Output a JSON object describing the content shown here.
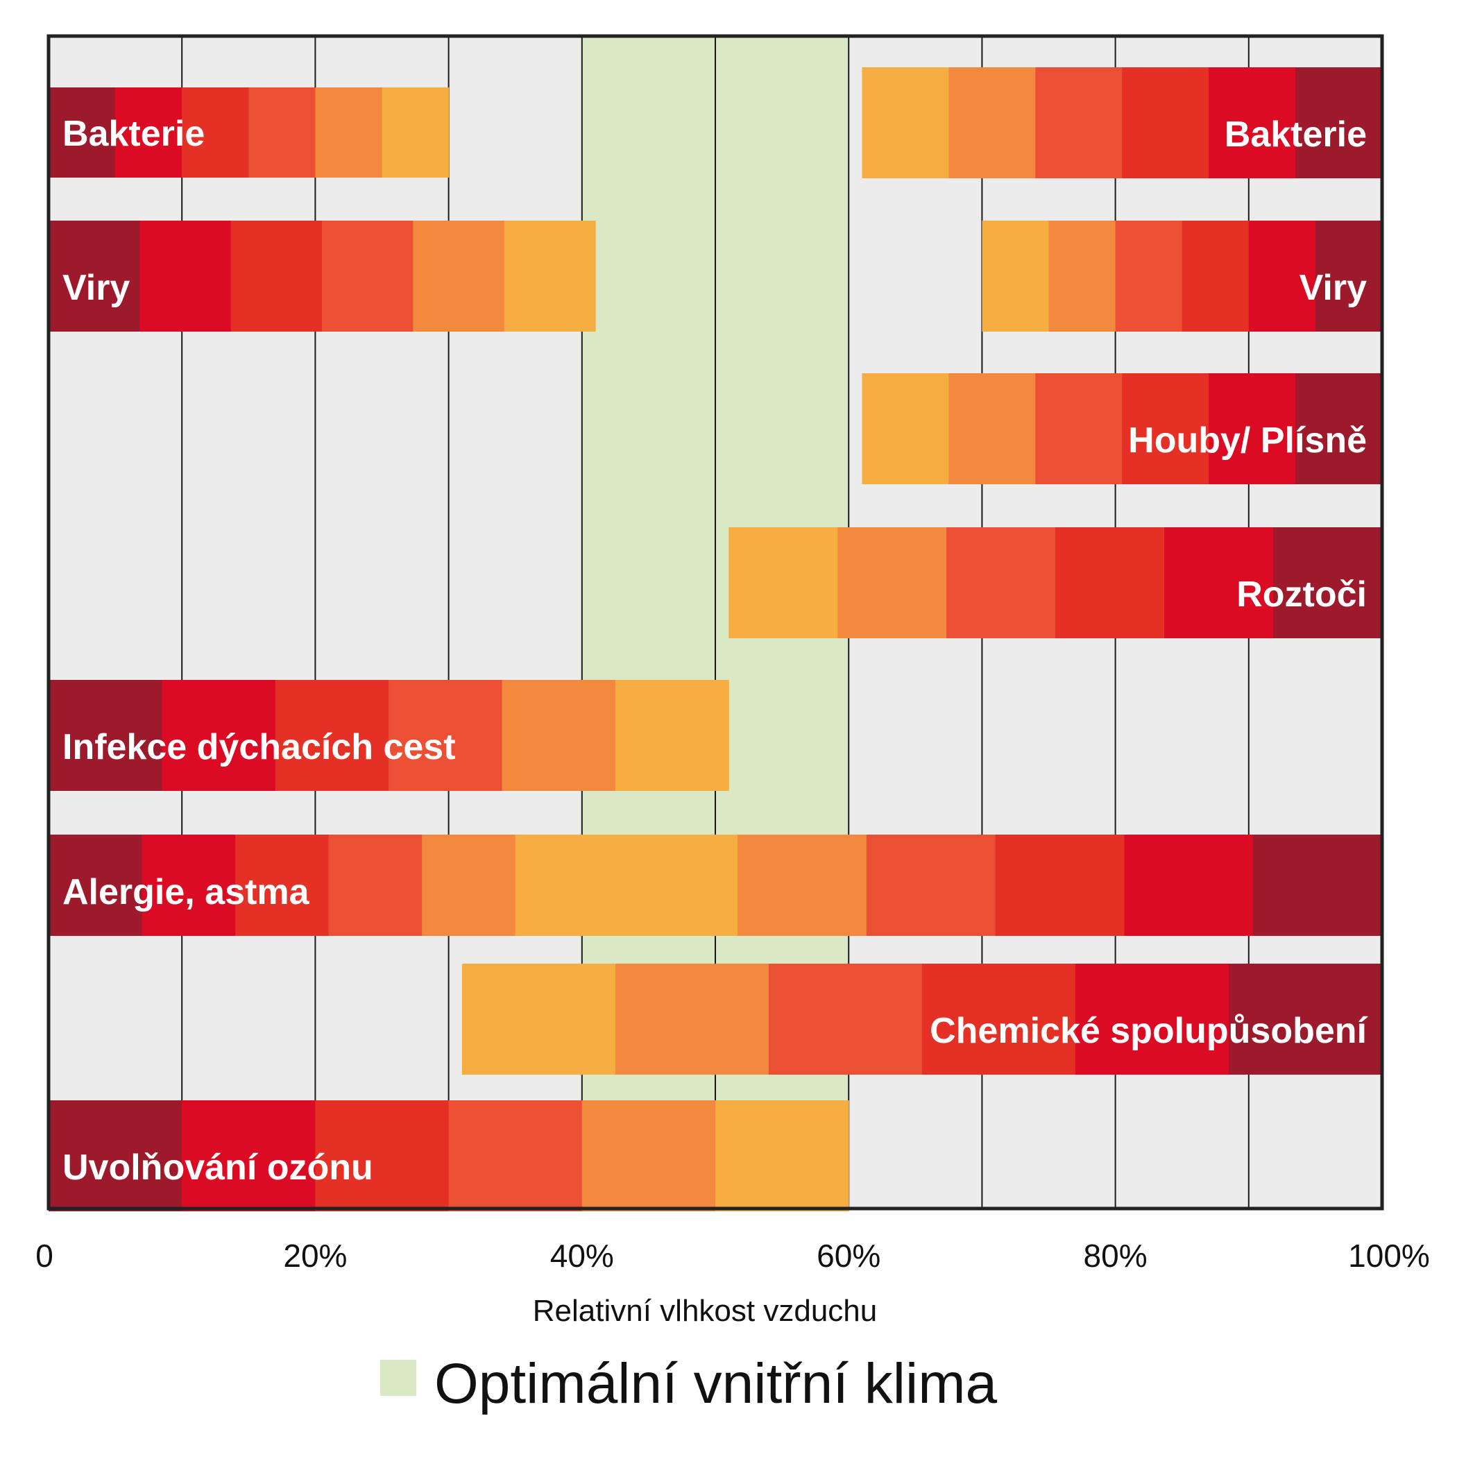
{
  "chart_data": {
    "type": "bar",
    "orientation": "horizontal",
    "xlabel": "Relativní vlhkost vzduchu",
    "xlim": [
      0,
      100
    ],
    "x_ticks": [
      "0",
      "20%",
      "40%",
      "60%",
      "80%",
      "100%"
    ],
    "grid_every": 10,
    "grid": true,
    "optimal_range": {
      "from": 40,
      "to": 60,
      "color": "#d9e8c5",
      "label": "Optimální vnitřní klima"
    },
    "legend": "bottom",
    "colors": {
      "level1": "#f6ae42",
      "level2": "#f3893f",
      "level3": "#eb5035",
      "level4": "#e53026",
      "level5": "#dc0b24",
      "level6": "#9c1a2b",
      "background": "#ececec",
      "frame": "#222222"
    },
    "rows": [
      {
        "label": "Bakterie",
        "segments": [
          {
            "from": 0,
            "to": 30,
            "steps": 6,
            "direction": "fade-right"
          },
          {
            "from": 61,
            "to": 100,
            "steps": 6,
            "direction": "fade-left"
          }
        ],
        "label_positions": [
          "left",
          "right"
        ]
      },
      {
        "label": "Viry",
        "segments": [
          {
            "from": 0,
            "to": 41,
            "steps": 6,
            "direction": "fade-right"
          },
          {
            "from": 70,
            "to": 100,
            "steps": 6,
            "direction": "fade-left"
          }
        ],
        "label_positions": [
          "left",
          "right"
        ]
      },
      {
        "label": "Houby/ Plísně",
        "segments": [
          {
            "from": 61,
            "to": 100,
            "steps": 6,
            "direction": "fade-left"
          }
        ],
        "label_positions": [
          "right"
        ]
      },
      {
        "label": "Roztoči",
        "segments": [
          {
            "from": 51,
            "to": 100,
            "steps": 6,
            "direction": "fade-left"
          }
        ],
        "label_positions": [
          "right"
        ]
      },
      {
        "label": "Infekce dýchacích cest",
        "segments": [
          {
            "from": 0,
            "to": 51,
            "steps": 6,
            "direction": "fade-right"
          }
        ],
        "label_positions": [
          "left"
        ]
      },
      {
        "label": "Alergie, astma",
        "segments": [
          {
            "from": 0,
            "to": 42,
            "steps": 6,
            "direction": "fade-right"
          },
          {
            "from": 42,
            "to": 100,
            "steps": 6,
            "direction": "fade-left"
          }
        ],
        "label_positions": [
          "left"
        ]
      },
      {
        "label": "Chemické spolupůsobení",
        "segments": [
          {
            "from": 31,
            "to": 100,
            "steps": 6,
            "direction": "fade-left"
          }
        ],
        "label_positions": [
          "right"
        ]
      },
      {
        "label": "Uvolňování ozónu",
        "segments": [
          {
            "from": 0,
            "to": 60,
            "steps": 6,
            "direction": "fade-right"
          }
        ],
        "label_positions": [
          "left"
        ]
      }
    ]
  }
}
